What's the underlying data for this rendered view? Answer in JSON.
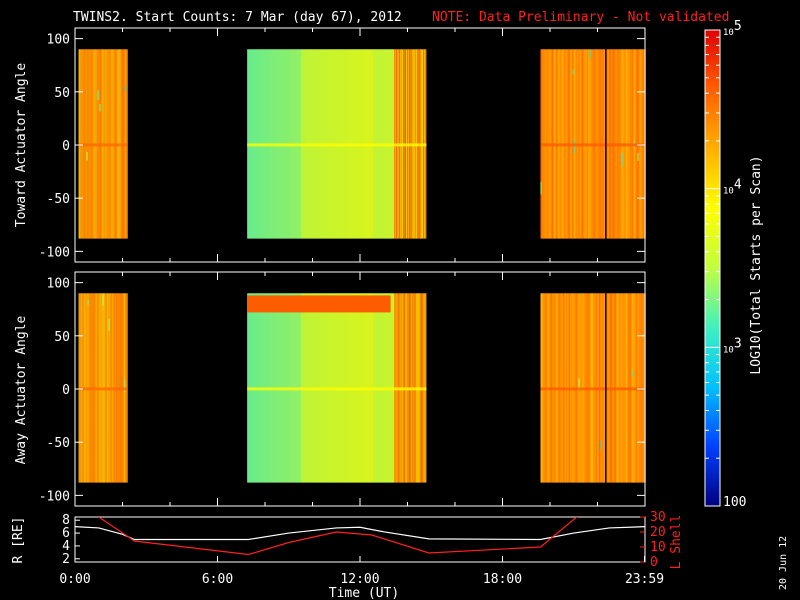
{
  "title": {
    "text": "TWINS2. Start Counts:  7 Mar (day  67), 2012",
    "note": "NOTE: Data Preliminary - Not validated",
    "note_color": "#ff2020"
  },
  "timestamp": "20 Jun 12",
  "colorbar": {
    "label": "LOG10(Total Starts per Scan)",
    "ticks": [
      "100",
      "10^3",
      "10^4",
      "10^5"
    ],
    "scale": "log",
    "range": [
      100,
      100000
    ],
    "colormap": [
      "#000080",
      "#0040ff",
      "#00c0ff",
      "#40f0c0",
      "#c0ff40",
      "#ffff00",
      "#ffb000",
      "#ff6000",
      "#e00000"
    ]
  },
  "chart_data": [
    {
      "type": "heatmap",
      "panel": "toward",
      "ylabel": "Toward Actuator Angle",
      "ylim": [
        -110,
        110
      ],
      "yticks": [
        "100",
        "50",
        "0",
        "-50",
        "-100"
      ],
      "xlim": [
        0,
        24
      ],
      "data_y_range": [
        -88,
        90
      ],
      "segments": [
        {
          "start": 0.15,
          "end": 2.2,
          "level": 0.78
        },
        {
          "start": 7.25,
          "end": 14.8,
          "level": 0.55
        },
        {
          "start": 19.6,
          "end": 24.0,
          "level": 0.8
        }
      ]
    },
    {
      "type": "heatmap",
      "panel": "away",
      "ylabel": "Away Actuator Angle",
      "ylim": [
        -110,
        110
      ],
      "yticks": [
        "100",
        "50",
        "0",
        "-50",
        "-100"
      ],
      "xlim": [
        0,
        24
      ],
      "data_y_range": [
        -88,
        90
      ],
      "segments": [
        {
          "start": 0.15,
          "end": 2.2,
          "level": 0.78
        },
        {
          "start": 7.25,
          "end": 14.8,
          "level": 0.55
        },
        {
          "start": 19.6,
          "end": 24.0,
          "level": 0.8
        }
      ]
    },
    {
      "type": "line",
      "panel": "orbit",
      "xlabel": "Time (UT)",
      "xticks": [
        "0:00",
        "6:00",
        "12:00",
        "18:00",
        "23:59"
      ],
      "xtick_hours": [
        0,
        6,
        12,
        18,
        23.98
      ],
      "ylabel_left": "R [RE]",
      "ylim_left": [
        1.5,
        8.5
      ],
      "yticks_left": [
        "8",
        "6",
        "4",
        "2"
      ],
      "ylabel_right": "L Shell",
      "ylim_right": [
        0,
        30
      ],
      "yticks_right": [
        "30",
        "20",
        "10",
        "0"
      ],
      "series": [
        {
          "axis": "left",
          "color": "#ffffff",
          "x": [
            0,
            1,
            2,
            2.5,
            7.3,
            9,
            11,
            12,
            13,
            14.9,
            19.6,
            21,
            22.5,
            24
          ],
          "y": [
            7.0,
            6.8,
            5.8,
            5.0,
            5.0,
            6.0,
            6.8,
            6.9,
            6.2,
            5.1,
            5.0,
            6.0,
            6.8,
            7.0
          ]
        },
        {
          "axis": "right",
          "color": "#ff2020",
          "x": [
            1.0,
            2.5,
            7.3,
            9.0,
            11.0,
            12.5,
            14.9,
            19.6,
            21.2
          ],
          "y": [
            30,
            14,
            5,
            13,
            20,
            18,
            6,
            10,
            31
          ]
        }
      ]
    }
  ],
  "axis_labels": {
    "toward": "Toward Actuator Angle",
    "away": "Away Actuator Angle",
    "time": "Time (UT)",
    "r": "R [RE]",
    "lshell": "L Shell"
  }
}
